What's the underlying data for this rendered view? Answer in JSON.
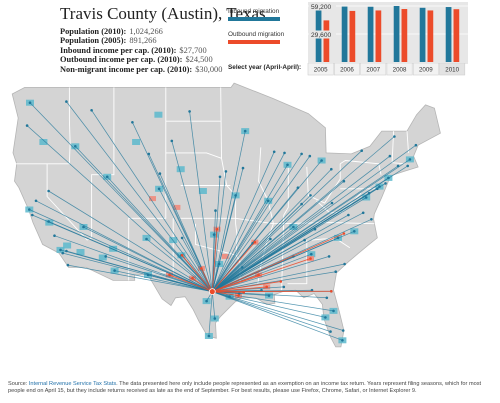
{
  "header": {
    "title": "Travis County (Austin), Texas",
    "stats": [
      {
        "label": "Population (2010):",
        "value": "1,024,266"
      },
      {
        "label": "Population (2005):",
        "value": "891,266"
      },
      {
        "label": "Inbound income per cap. (2010):",
        "value": "$27,700"
      },
      {
        "label": "Outbound income per cap. (2010):",
        "value": "$24,500"
      },
      {
        "label": "Non-migrant income per cap. (2010):",
        "value": "$30,000"
      }
    ]
  },
  "legend": {
    "inbound_label": "Inbound migration",
    "outbound_label": "Outbound migration"
  },
  "colors": {
    "inbound": "#21779a",
    "outbound": "#ec4b2a",
    "land": "#d4d4d4",
    "county_border": "#bdbdbd",
    "state_border": "#ffffff",
    "inbound_county": "#5cb8cc",
    "outbound_county": "#ef8b7c"
  },
  "year_selector": {
    "prompt": "Select year (April-April):",
    "years": [
      "2005",
      "2006",
      "2007",
      "2008",
      "2009",
      "2010"
    ],
    "selected": "2010"
  },
  "chart_data": {
    "type": "bar",
    "categories": [
      "2005",
      "2006",
      "2007",
      "2008",
      "2009",
      "2010"
    ],
    "series": [
      {
        "name": "Inbound migration",
        "values": [
          57500,
          58600,
          58400,
          59200,
          57300,
          58100
        ]
      },
      {
        "name": "Outbound migration",
        "values": [
          44000,
          54000,
          54500,
          56000,
          54500,
          55800
        ]
      }
    ],
    "y_ticks": [
      "59,200",
      "29,600"
    ],
    "ylim": [
      0,
      59200
    ]
  },
  "map": {
    "hub_name": "Travis County (Austin), Texas",
    "hub": [
      -97.74,
      30.27
    ],
    "inbound_origins": [
      [
        -122.4,
        37.8
      ],
      [
        -122.3,
        47.6
      ],
      [
        -118.2,
        34.1
      ],
      [
        -117.2,
        32.7
      ],
      [
        -121.5,
        38.6
      ],
      [
        -122.7,
        45.5
      ],
      [
        -112.1,
        33.5
      ],
      [
        -111.9,
        40.8
      ],
      [
        -104.9,
        39.7
      ],
      [
        -106.6,
        35.1
      ],
      [
        -115.1,
        36.2
      ],
      [
        -116.2,
        43.6
      ],
      [
        -110.9,
        32.2
      ],
      [
        -87.6,
        41.9
      ],
      [
        -74.0,
        40.7
      ],
      [
        -71.1,
        42.4
      ],
      [
        -77.0,
        38.9
      ],
      [
        -75.2,
        39.9
      ],
      [
        -84.4,
        33.7
      ],
      [
        -80.2,
        25.8
      ],
      [
        -81.4,
        28.5
      ],
      [
        -82.5,
        27.9
      ],
      [
        -80.8,
        35.2
      ],
      [
        -78.6,
        35.8
      ],
      [
        -86.8,
        36.2
      ],
      [
        -90.1,
        29.9
      ],
      [
        -93.3,
        45.0
      ],
      [
        -83.0,
        42.3
      ],
      [
        -84.5,
        39.1
      ],
      [
        -86.2,
        39.8
      ],
      [
        -90.2,
        38.6
      ],
      [
        -94.6,
        39.1
      ],
      [
        -95.9,
        41.3
      ],
      [
        -96.8,
        32.8
      ],
      [
        -95.4,
        29.8
      ],
      [
        -98.5,
        29.4
      ],
      [
        -97.5,
        35.5
      ],
      [
        -97.3,
        37.7
      ],
      [
        -92.3,
        34.7
      ],
      [
        -88.0,
        43.0
      ],
      [
        -89.4,
        43.1
      ],
      [
        -81.7,
        41.5
      ],
      [
        -80.0,
        40.4
      ],
      [
        -73.8,
        42.7
      ],
      [
        -77.6,
        43.2
      ],
      [
        -76.6,
        39.3
      ],
      [
        -72.7,
        41.8
      ],
      [
        -70.3,
        43.7
      ],
      [
        -73.2,
        44.5
      ],
      [
        -71.4,
        41.8
      ],
      [
        -79.9,
        32.8
      ],
      [
        -81.1,
        32.1
      ],
      [
        -85.7,
        38.3
      ],
      [
        -82.0,
        33.5
      ],
      [
        -86.8,
        33.5
      ],
      [
        -88.1,
        30.7
      ],
      [
        -89.9,
        35.1
      ],
      [
        -85.3,
        35.0
      ],
      [
        -83.9,
        36.0
      ],
      [
        -84.6,
        42.7
      ],
      [
        -85.7,
        42.9
      ],
      [
        -93.6,
        41.6
      ],
      [
        -96.7,
        40.8
      ],
      [
        -100.8,
        46.8
      ],
      [
        -103.2,
        44.1
      ],
      [
        -108.5,
        45.8
      ],
      [
        -114.0,
        46.9
      ],
      [
        -117.4,
        47.7
      ],
      [
        -106.3,
        42.9
      ],
      [
        -104.8,
        41.1
      ],
      [
        -119.8,
        39.5
      ],
      [
        -119.8,
        36.7
      ],
      [
        -101.9,
        33.6
      ],
      [
        -101.8,
        35.2
      ],
      [
        -106.4,
        31.8
      ],
      [
        -97.4,
        27.8
      ],
      [
        -98.2,
        26.2
      ],
      [
        -94.1,
        30.1
      ],
      [
        -93.7,
        32.5
      ],
      [
        -91.1,
        30.4
      ],
      [
        -82.3,
        29.7
      ],
      [
        -81.7,
        30.3
      ],
      [
        -84.3,
        30.4
      ],
      [
        -80.1,
        26.7
      ],
      [
        -81.8,
        26.6
      ],
      [
        -77.4,
        37.5
      ],
      [
        -76.3,
        36.9
      ],
      [
        -79.4,
        37.3
      ],
      [
        -81.6,
        38.4
      ],
      [
        -75.5,
        39.7
      ],
      [
        -74.4,
        40.2
      ],
      [
        -122.0,
        37.3
      ],
      [
        -117.9,
        33.8
      ],
      [
        -117.4,
        34.0
      ],
      [
        -119.0,
        35.4
      ]
    ],
    "outbound_destinations": [
      [
        -90.4,
        30.7
      ],
      [
        -88.5,
        31.2
      ],
      [
        -97.1,
        36.0
      ],
      [
        -100.4,
        31.5
      ],
      [
        -101.8,
        33.6
      ],
      [
        -94.2,
        29.9
      ],
      [
        -91.5,
        31.8
      ],
      [
        -93.5,
        30.2
      ],
      [
        -80.0,
        35.6
      ],
      [
        -81.7,
        30.3
      ],
      [
        -99.2,
        32.4
      ],
      [
        -103.5,
        31.8
      ],
      [
        -84.5,
        33.3
      ],
      [
        -92.0,
        34.8
      ]
    ],
    "inbound_counties": [
      [
        -118.2,
        34.1
      ],
      [
        -117.3,
        34.5
      ],
      [
        -115.5,
        33.9
      ],
      [
        -119.7,
        36.6
      ],
      [
        -112.5,
        33.4
      ],
      [
        -111.1,
        34.2
      ],
      [
        -104.9,
        39.7
      ],
      [
        -106.6,
        35.2
      ],
      [
        -96.8,
        32.8
      ],
      [
        -95.4,
        29.8
      ],
      [
        -98.5,
        29.4
      ],
      [
        -97.5,
        35.5
      ],
      [
        -87.6,
        41.9
      ],
      [
        -74.0,
        40.7
      ],
      [
        -80.2,
        25.8
      ],
      [
        -81.4,
        28.5
      ],
      [
        -84.4,
        33.7
      ],
      [
        -122.4,
        37.8
      ],
      [
        -122.3,
        47.6
      ],
      [
        -93.3,
        45.0
      ],
      [
        -90.1,
        29.9
      ],
      [
        -83.0,
        42.3
      ],
      [
        -77.0,
        38.9
      ],
      [
        -71.1,
        42.4
      ],
      [
        -75.2,
        39.9
      ],
      [
        -101.9,
        33.6
      ],
      [
        -106.4,
        31.8
      ],
      [
        -97.4,
        27.8
      ],
      [
        -98.2,
        26.2
      ],
      [
        -110.9,
        32.2
      ],
      [
        -115.1,
        36.2
      ],
      [
        -116.2,
        43.6
      ],
      [
        -111.9,
        40.8
      ],
      [
        -94.6,
        39.1
      ],
      [
        -90.2,
        38.6
      ],
      [
        -86.8,
        36.2
      ],
      [
        -80.8,
        35.2
      ],
      [
        -78.6,
        35.8
      ],
      [
        -82.5,
        27.9
      ],
      [
        -105.0,
        46.5
      ],
      [
        -108.0,
        44.0
      ],
      [
        -102.0,
        41.5
      ],
      [
        -99.0,
        39.5
      ],
      [
        -103.0,
        35.0
      ],
      [
        -120.5,
        44.0
      ]
    ],
    "outbound_counties": [
      [
        -97.1,
        36.0
      ],
      [
        -90.4,
        30.7
      ],
      [
        -100.4,
        31.5
      ],
      [
        -94.2,
        29.9
      ],
      [
        -91.5,
        31.8
      ],
      [
        -99.2,
        32.4
      ],
      [
        -103.5,
        31.8
      ],
      [
        -84.5,
        33.3
      ],
      [
        -92.0,
        34.8
      ],
      [
        -105.8,
        38.8
      ],
      [
        -102.5,
        38.0
      ],
      [
        -96.0,
        33.5
      ]
    ]
  },
  "footer": {
    "source_label": "Source:",
    "source_link": "Internal Revenue Service Tax Stats",
    "text": ". The data presented here only include people represented as an exemption on an income tax return. Years represent filing seasons, which for most people end on April 15, but they include returns received as late as the end of September. For best results, please use Firefox, Chrome, Safari, or Internet Explorer 9."
  }
}
